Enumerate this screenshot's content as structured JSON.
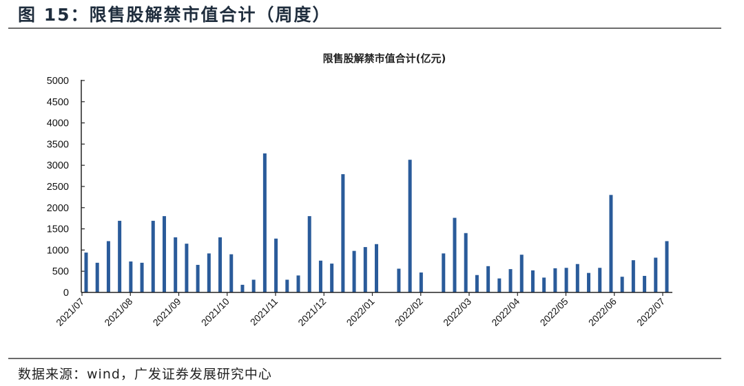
{
  "figure": {
    "title": "图 15：限售股解禁市值合计（周度）",
    "source": "数据来源：wind，广发证券发展研究中心"
  },
  "colors": {
    "bar": "#2a5b9a",
    "axis": "#222222",
    "rule": "#6b6b6b"
  },
  "chart_data": {
    "type": "bar",
    "title": "限售股解禁市值合计(亿元)",
    "xlabel": "",
    "ylabel": "",
    "ylim": [
      0,
      5000
    ],
    "yticks": [
      0,
      500,
      1000,
      1500,
      2000,
      2500,
      3000,
      3500,
      4000,
      4500,
      5000
    ],
    "grid": false,
    "legend": null,
    "x_tick_labels": [
      "2021/07",
      "2021/08",
      "2021/09",
      "2021/10",
      "2021/11",
      "2021/12",
      "2022/01",
      "2022/02",
      "2022/03",
      "2022/04",
      "2022/05",
      "2022/06",
      "2022/07"
    ],
    "frequency": "weekly",
    "series": [
      {
        "name": "限售股解禁市值合计",
        "unit": "亿元",
        "values": [
          940,
          700,
          1210,
          1690,
          730,
          700,
          1690,
          1800,
          1300,
          1150,
          650,
          920,
          1300,
          900,
          180,
          300,
          3280,
          1270,
          300,
          400,
          1800,
          750,
          680,
          2790,
          980,
          1070,
          1140,
          0,
          560,
          3130,
          470,
          0,
          920,
          1760,
          1400,
          410,
          620,
          330,
          550,
          890,
          520,
          350,
          570,
          580,
          670,
          460,
          580,
          2300,
          370,
          760,
          390,
          820,
          1210
        ]
      }
    ]
  }
}
